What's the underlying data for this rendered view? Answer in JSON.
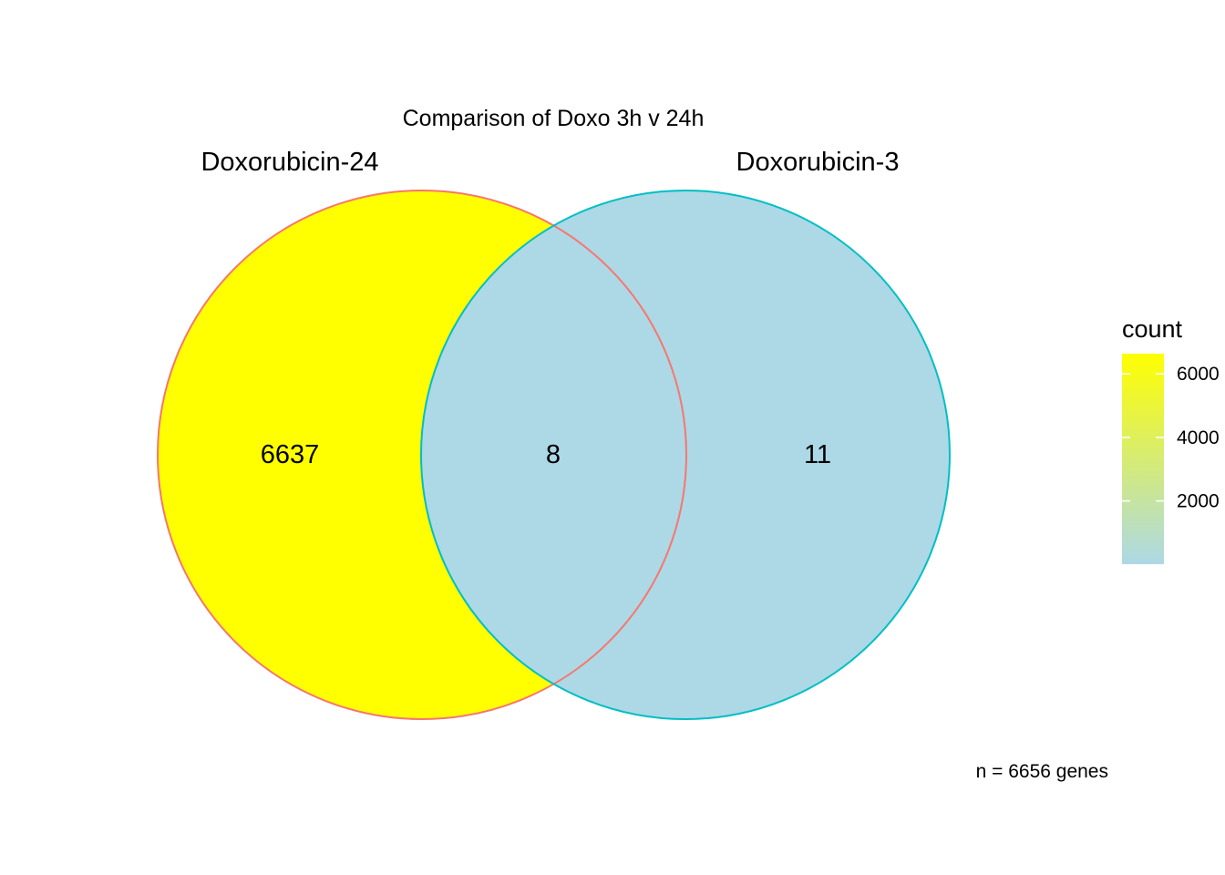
{
  "chart_data": {
    "type": "venn",
    "title": "Comparison of Doxo 3h v 24h",
    "sets": [
      {
        "name": "Doxorubicin-24",
        "border_color": "#F8766D"
      },
      {
        "name": "Doxorubicin-3",
        "border_color": "#00BFC4"
      }
    ],
    "regions": [
      {
        "sets": [
          "Doxorubicin-24"
        ],
        "count": "6637",
        "fill": "#FFFF00"
      },
      {
        "sets": [
          "Doxorubicin-24",
          "Doxorubicin-3"
        ],
        "count": "8",
        "fill": "#ADD8E6"
      },
      {
        "sets": [
          "Doxorubicin-3"
        ],
        "count": "11",
        "fill": "#ADD8E6"
      }
    ],
    "legend": {
      "title": "count",
      "placement": "right",
      "low_color": "#ADD8E6",
      "high_color": "#FFFF00",
      "range": [
        8,
        6637
      ],
      "ticks": [
        {
          "value": 2000,
          "label": "2000"
        },
        {
          "value": 4000,
          "label": "4000"
        },
        {
          "value": 6000,
          "label": "6000"
        }
      ]
    },
    "caption": "n = 6656 genes"
  }
}
